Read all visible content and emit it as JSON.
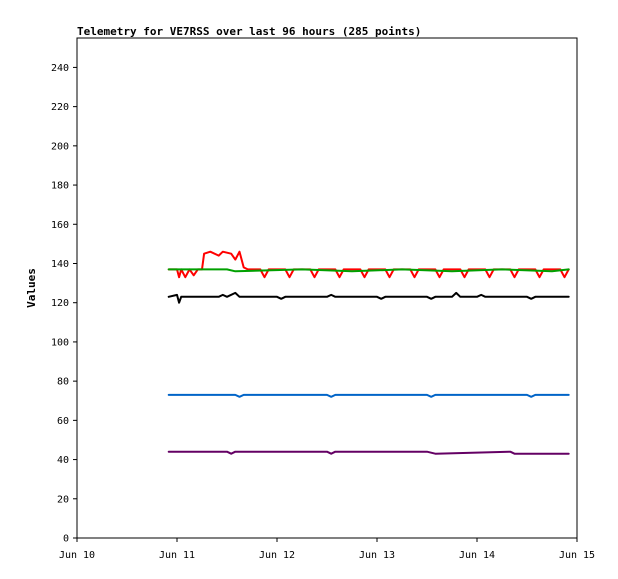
{
  "chart_data": {
    "type": "line",
    "title": "Telemetry for VE7RSS over last 96 hours (285 points)",
    "xlabel": "",
    "ylabel": "Values",
    "x_axis": {
      "type": "date",
      "range": [
        "Jun 10",
        "Jun 15"
      ],
      "ticks": [
        "Jun 10",
        "Jun 11",
        "Jun 12",
        "Jun 13",
        "Jun 14",
        "Jun 15"
      ]
    },
    "y_axis": {
      "range": [
        0,
        255
      ],
      "ticks": [
        0,
        20,
        40,
        60,
        80,
        100,
        120,
        140,
        160,
        180,
        200,
        220,
        240
      ]
    },
    "grid": false,
    "legend": "none",
    "series": [
      {
        "color": "#ff0000",
        "points": [
          [
            "Jun 10 22:00",
            137
          ],
          [
            "Jun 11 00:00",
            137
          ],
          [
            "Jun 11 00:30",
            133
          ],
          [
            "Jun 11 01:00",
            137
          ],
          [
            "Jun 11 02:00",
            133
          ],
          [
            "Jun 11 03:00",
            137
          ],
          [
            "Jun 11 04:00",
            134
          ],
          [
            "Jun 11 05:00",
            137
          ],
          [
            "Jun 11 06:00",
            137
          ],
          [
            "Jun 11 06:30",
            145
          ],
          [
            "Jun 11 08:00",
            146
          ],
          [
            "Jun 11 10:00",
            144
          ],
          [
            "Jun 11 11:00",
            146
          ],
          [
            "Jun 11 13:00",
            145
          ],
          [
            "Jun 11 14:00",
            142
          ],
          [
            "Jun 11 15:00",
            146
          ],
          [
            "Jun 11 16:00",
            138
          ],
          [
            "Jun 11 17:00",
            137
          ],
          [
            "Jun 11 20:00",
            137
          ],
          [
            "Jun 11 21:00",
            133
          ],
          [
            "Jun 11 22:00",
            137
          ],
          [
            "Jun 12 02:00",
            137
          ],
          [
            "Jun 12 03:00",
            133
          ],
          [
            "Jun 12 04:00",
            137
          ],
          [
            "Jun 12 08:00",
            137
          ],
          [
            "Jun 12 09:00",
            133
          ],
          [
            "Jun 12 10:00",
            137
          ],
          [
            "Jun 12 14:00",
            137
          ],
          [
            "Jun 12 15:00",
            133
          ],
          [
            "Jun 12 16:00",
            137
          ],
          [
            "Jun 12 20:00",
            137
          ],
          [
            "Jun 12 21:00",
            133
          ],
          [
            "Jun 12 22:00",
            137
          ],
          [
            "Jun 13 02:00",
            137
          ],
          [
            "Jun 13 03:00",
            133
          ],
          [
            "Jun 13 04:00",
            137
          ],
          [
            "Jun 13 08:00",
            137
          ],
          [
            "Jun 13 09:00",
            133
          ],
          [
            "Jun 13 10:00",
            137
          ],
          [
            "Jun 13 14:00",
            137
          ],
          [
            "Jun 13 15:00",
            133
          ],
          [
            "Jun 13 16:00",
            137
          ],
          [
            "Jun 13 20:00",
            137
          ],
          [
            "Jun 13 21:00",
            133
          ],
          [
            "Jun 13 22:00",
            137
          ],
          [
            "Jun 14 02:00",
            137
          ],
          [
            "Jun 14 03:00",
            133
          ],
          [
            "Jun 14 04:00",
            137
          ],
          [
            "Jun 14 08:00",
            137
          ],
          [
            "Jun 14 09:00",
            133
          ],
          [
            "Jun 14 10:00",
            137
          ],
          [
            "Jun 14 14:00",
            137
          ],
          [
            "Jun 14 15:00",
            133
          ],
          [
            "Jun 14 16:00",
            137
          ],
          [
            "Jun 14 20:00",
            137
          ],
          [
            "Jun 14 21:00",
            133
          ],
          [
            "Jun 14 22:00",
            137
          ]
        ]
      },
      {
        "color": "#00a000",
        "points": [
          [
            "Jun 10 22:00",
            137
          ],
          [
            "Jun 11 12:00",
            137
          ],
          [
            "Jun 11 14:00",
            136
          ],
          [
            "Jun 12 06:00",
            137
          ],
          [
            "Jun 12 18:00",
            136
          ],
          [
            "Jun 13 06:00",
            137
          ],
          [
            "Jun 13 18:00",
            136
          ],
          [
            "Jun 14 06:00",
            137
          ],
          [
            "Jun 14 18:00",
            136
          ],
          [
            "Jun 14 22:00",
            137
          ]
        ]
      },
      {
        "color": "#000000",
        "points": [
          [
            "Jun 10 22:00",
            123
          ],
          [
            "Jun 11 00:00",
            124
          ],
          [
            "Jun 11 00:30",
            120
          ],
          [
            "Jun 11 01:00",
            123
          ],
          [
            "Jun 11 10:00",
            123
          ],
          [
            "Jun 11 11:00",
            124
          ],
          [
            "Jun 11 12:00",
            123
          ],
          [
            "Jun 11 14:00",
            125
          ],
          [
            "Jun 11 15:00",
            123
          ],
          [
            "Jun 12 00:00",
            123
          ],
          [
            "Jun 12 01:00",
            122
          ],
          [
            "Jun 12 02:00",
            123
          ],
          [
            "Jun 12 12:00",
            123
          ],
          [
            "Jun 12 13:00",
            124
          ],
          [
            "Jun 12 14:00",
            123
          ],
          [
            "Jun 13 00:00",
            123
          ],
          [
            "Jun 13 01:00",
            122
          ],
          [
            "Jun 13 02:00",
            123
          ],
          [
            "Jun 13 12:00",
            123
          ],
          [
            "Jun 13 13:00",
            122
          ],
          [
            "Jun 13 14:00",
            123
          ],
          [
            "Jun 13 18:00",
            123
          ],
          [
            "Jun 13 19:00",
            125
          ],
          [
            "Jun 13 20:00",
            123
          ],
          [
            "Jun 14 00:00",
            123
          ],
          [
            "Jun 14 01:00",
            124
          ],
          [
            "Jun 14 02:00",
            123
          ],
          [
            "Jun 14 12:00",
            123
          ],
          [
            "Jun 14 13:00",
            122
          ],
          [
            "Jun 14 14:00",
            123
          ],
          [
            "Jun 14 22:00",
            123
          ]
        ]
      },
      {
        "color": "#0064c8",
        "points": [
          [
            "Jun 10 22:00",
            73
          ],
          [
            "Jun 11 14:00",
            73
          ],
          [
            "Jun 11 15:00",
            72
          ],
          [
            "Jun 11 16:00",
            73
          ],
          [
            "Jun 12 12:00",
            73
          ],
          [
            "Jun 12 13:00",
            72
          ],
          [
            "Jun 12 14:00",
            73
          ],
          [
            "Jun 13 12:00",
            73
          ],
          [
            "Jun 13 13:00",
            72
          ],
          [
            "Jun 13 14:00",
            73
          ],
          [
            "Jun 14 12:00",
            73
          ],
          [
            "Jun 14 13:00",
            72
          ],
          [
            "Jun 14 14:00",
            73
          ],
          [
            "Jun 14 22:00",
            73
          ]
        ]
      },
      {
        "color": "#640064",
        "points": [
          [
            "Jun 10 22:00",
            44
          ],
          [
            "Jun 11 12:00",
            44
          ],
          [
            "Jun 11 13:00",
            43
          ],
          [
            "Jun 11 14:00",
            44
          ],
          [
            "Jun 12 12:00",
            44
          ],
          [
            "Jun 12 13:00",
            43
          ],
          [
            "Jun 12 14:00",
            44
          ],
          [
            "Jun 13 12:00",
            44
          ],
          [
            "Jun 13 14:00",
            43
          ],
          [
            "Jun 14 08:00",
            44
          ],
          [
            "Jun 14 09:00",
            43
          ],
          [
            "Jun 14 22:00",
            43
          ]
        ]
      }
    ]
  }
}
